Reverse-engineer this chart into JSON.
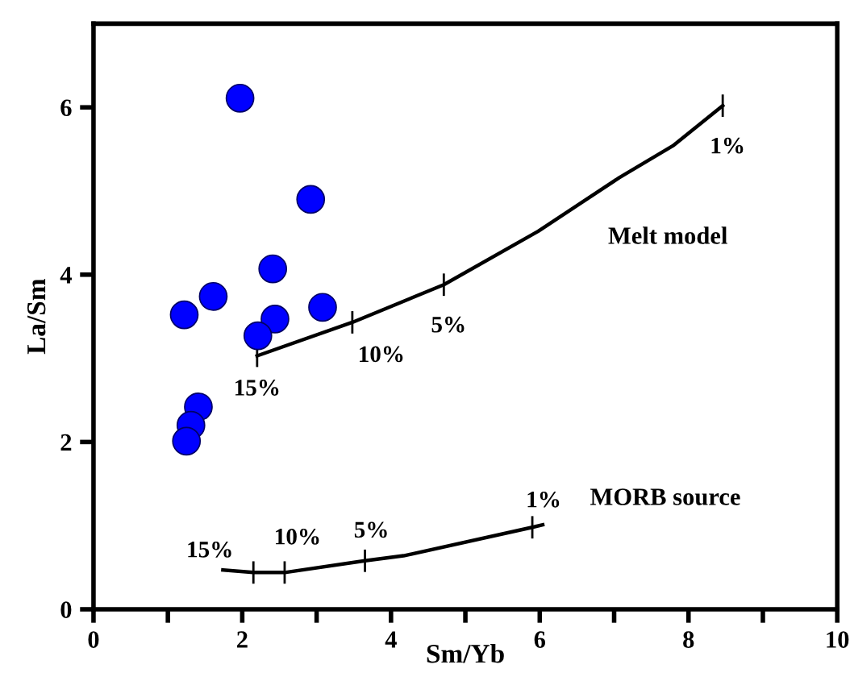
{
  "chart_data": {
    "type": "scatter",
    "xlabel": "Sm/Yb",
    "ylabel": "La/Sm",
    "xlim": [
      0,
      10
    ],
    "ylim": [
      0,
      7
    ],
    "xticks": [
      0,
      {
        "value": 1,
        "label": null
      },
      2,
      {
        "value": 3,
        "label": null
      },
      4,
      {
        "value": 5,
        "label": null
      },
      6,
      {
        "value": 7,
        "label": null
      },
      8,
      {
        "value": 9,
        "label": null
      },
      10
    ],
    "yticks": [
      0,
      2,
      4,
      6
    ],
    "grid": false,
    "legend": false,
    "series": [
      {
        "color": "#0000ff",
        "marker": "circle",
        "x": [
          1.97,
          2.92,
          2.41,
          1.61,
          1.22,
          2.44,
          2.21,
          3.08,
          1.41,
          1.31,
          1.25
        ],
        "values": [
          6.11,
          4.9,
          4.07,
          3.74,
          3.52,
          3.47,
          3.27,
          3.61,
          2.42,
          2.2,
          2.01
        ]
      },
      {
        "type": "line",
        "name": "Melt model",
        "color": "#000000",
        "line_style": "solid",
        "x": [
          2.2,
          3.48,
          4.71,
          5.98,
          7.07,
          7.79,
          8.46
        ],
        "values": [
          3.03,
          3.43,
          3.88,
          4.52,
          5.16,
          5.54,
          6.02
        ]
      },
      {
        "type": "line",
        "name": "MORB source",
        "color": "#000000",
        "line_style": "solid",
        "x": [
          1.74,
          2.15,
          2.57,
          3.65,
          4.17,
          5.9,
          6.04
        ],
        "values": [
          0.47,
          0.44,
          0.44,
          0.58,
          0.64,
          0.98,
          1.01
        ]
      }
    ],
    "annotations": [
      {
        "text": "15%",
        "x": 2.2,
        "y": 3.03
      },
      {
        "text": "10%",
        "x": 3.48,
        "y": 3.43
      },
      {
        "text": "5%",
        "x": 4.71,
        "y": 3.88
      },
      {
        "text": "1%",
        "x": 8.46,
        "y": 6.02
      },
      {
        "text": "15%",
        "x": 2.15,
        "y": 0.44
      },
      {
        "text": "10%",
        "x": 2.57,
        "y": 0.44
      },
      {
        "text": "5%",
        "x": 3.65,
        "y": 0.58
      },
      {
        "text": "1%",
        "x": 5.9,
        "y": 0.98
      }
    ]
  }
}
